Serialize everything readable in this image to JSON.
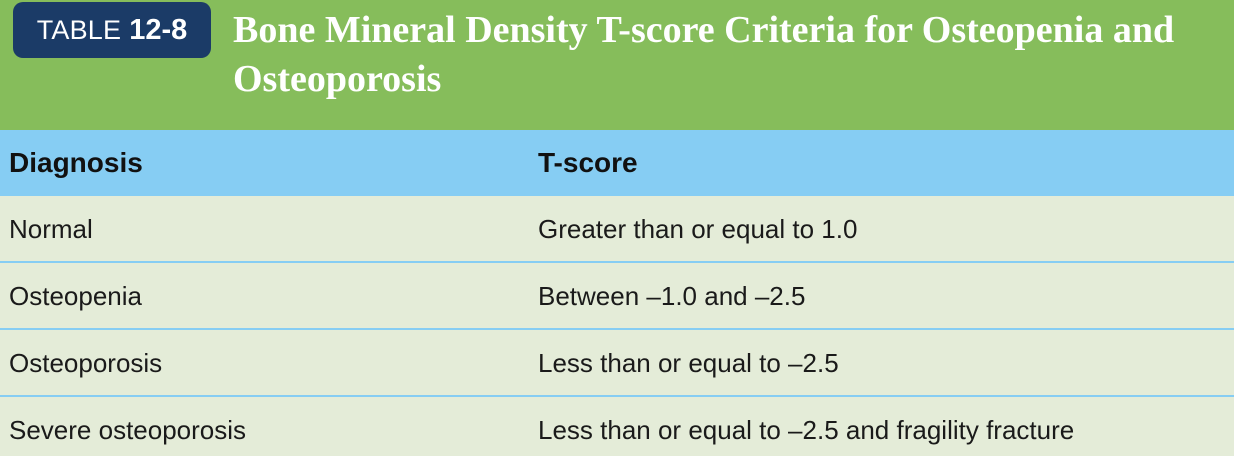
{
  "table": {
    "label_word": "TABLE",
    "label_number": "12-8",
    "title": "Bone Mineral Density T-score Criteria for Osteopenia and Osteoporosis",
    "columns": [
      "Diagnosis",
      "T-score"
    ],
    "rows": [
      {
        "diagnosis": "Normal",
        "t_score": "Greater than or equal to 1.0"
      },
      {
        "diagnosis": "Osteopenia",
        "t_score": "Between –1.0 and –2.5"
      },
      {
        "diagnosis": "Osteoporosis",
        "t_score": "Less than or equal to –2.5"
      },
      {
        "diagnosis": "Severe osteoporosis",
        "t_score": "Less than or equal to –2.5 and fragility fracture"
      }
    ]
  },
  "colors": {
    "title_band": "#86bd5b",
    "label_badge": "#1b3b67",
    "column_header": "#86cdf3",
    "body_background": "#e4ecd8"
  }
}
